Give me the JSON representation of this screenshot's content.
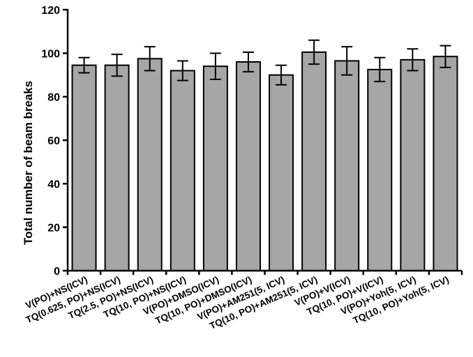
{
  "chart_data": {
    "type": "bar",
    "title": "",
    "xlabel": "",
    "ylabel": "Total number of beam breaks",
    "ylim": [
      0,
      120
    ],
    "yticks": [
      0,
      20,
      40,
      60,
      80,
      100,
      120
    ],
    "grid": false,
    "legend": "none",
    "bar_color": "#a6a6a6",
    "categories": [
      "V(PO)+NS(ICV)",
      "TQ(0.625, PO)+NS(ICV)",
      "TQ(2.5, PO)+NS(ICV)",
      "TQ(10, PO)+NS(ICV)",
      "V(PO)+DMSO(ICV)",
      "TQ(10, PO)+DMSO(ICV)",
      "V(PO)+AM251(5, ICV)",
      "TQ(10, PO)+AM251(5, ICV)",
      "V(PO)+V(ICV)",
      "TQ(10, PO)+V(ICV)",
      "V(PO)+Yoh(5, ICV)",
      "TQ(10, PO)+Yoh(5, ICV)"
    ],
    "values": [
      94.5,
      94.5,
      97.5,
      92,
      94,
      96,
      90,
      100.5,
      96.5,
      92.5,
      97,
      98.5
    ],
    "errors": [
      3.5,
      5,
      5.5,
      4.5,
      6,
      4.5,
      4.5,
      5.5,
      6.5,
      5.5,
      5,
      5
    ]
  }
}
